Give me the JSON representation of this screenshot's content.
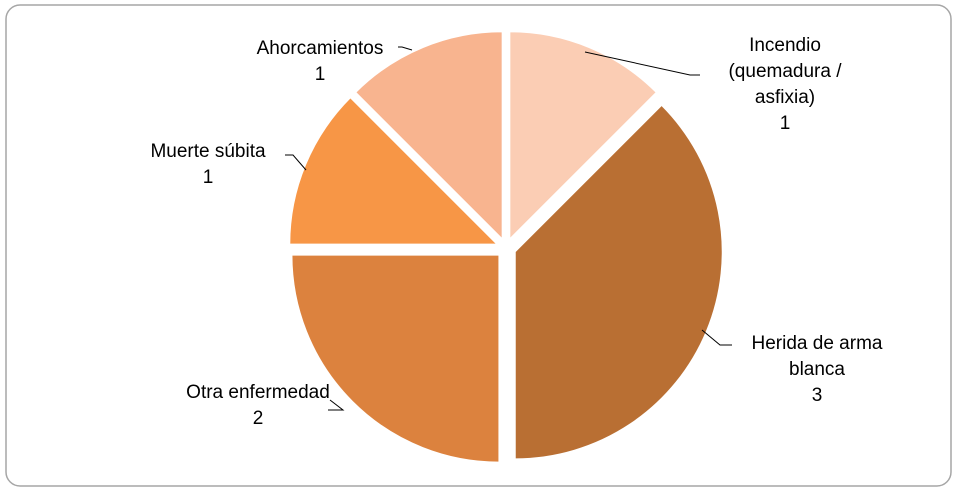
{
  "chart_data": {
    "type": "pie",
    "categories": [
      "Incendio (quemadura / asfixia)",
      "Herida de arma blanca",
      "Otra enfermedad",
      "Muerte súbita",
      "Ahorcamientos"
    ],
    "values": [
      1,
      3,
      2,
      1,
      1
    ],
    "colors": [
      "#fbcdb4",
      "#b96f33",
      "#dc823e",
      "#f79646",
      "#f8b48f"
    ]
  }
}
